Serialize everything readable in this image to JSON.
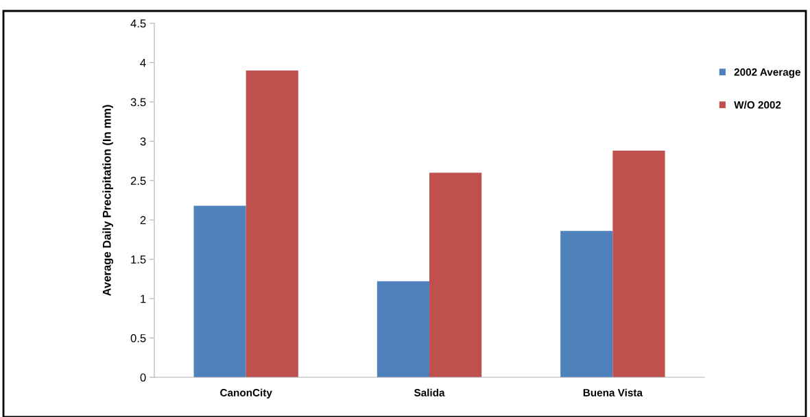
{
  "chart_data": {
    "type": "bar",
    "ylabel": "Average Daily Precipitation (In mm)",
    "categories": [
      "CanonCity",
      "Salida",
      "Buena Vista"
    ],
    "series": [
      {
        "name": "2002 Average",
        "color": "#4f81bd",
        "values": [
          2.18,
          1.22,
          1.86
        ]
      },
      {
        "name": "W/O 2002",
        "color": "#c0504d",
        "values": [
          3.9,
          2.6,
          2.88
        ]
      }
    ],
    "ylim": [
      0,
      4.5
    ],
    "yticks": [
      0,
      0.5,
      1,
      1.5,
      2,
      2.5,
      3,
      3.5,
      4,
      4.5
    ],
    "grid": false,
    "legend": "right"
  }
}
